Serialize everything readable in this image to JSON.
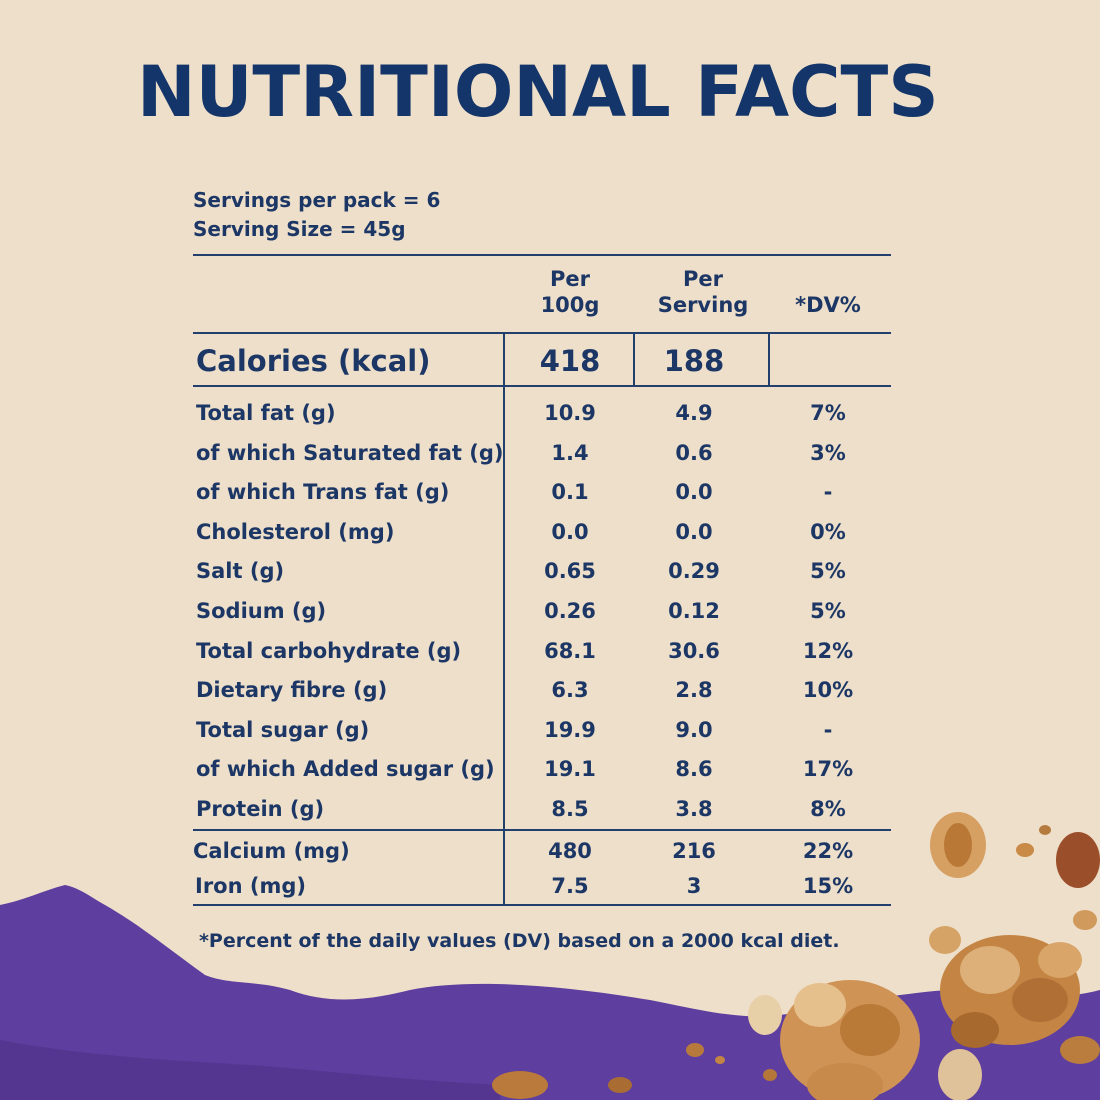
{
  "title": "NUTRITIONAL FACTS",
  "servings_per_pack": "Servings per pack = 6",
  "serving_size": "Serving Size = 45g",
  "headers": {
    "per_100g": [
      "Per",
      "100g"
    ],
    "per_serving": [
      "Per",
      "Serving"
    ],
    "dv": "*DV%"
  },
  "calories": {
    "label": "Calories (kcal)",
    "per_100g": "418",
    "per_serving": "188",
    "dv": ""
  },
  "rows": [
    {
      "label": "Total fat (g)",
      "per_100g": "10.9",
      "per_serving": "4.9",
      "dv": "7%"
    },
    {
      "label": "of which Saturated fat (g)",
      "per_100g": "1.4",
      "per_serving": "0.6",
      "dv": "3%"
    },
    {
      "label": "of which Trans fat (g)",
      "per_100g": "0.1",
      "per_serving": "0.0",
      "dv": "-"
    },
    {
      "label": "Cholesterol (mg)",
      "per_100g": "0.0",
      "per_serving": "0.0",
      "dv": "0%"
    },
    {
      "label": "Salt (g)",
      "per_100g": "0.65",
      "per_serving": "0.29",
      "dv": "5%"
    },
    {
      "label": "Sodium (g)",
      "per_100g": "0.26",
      "per_serving": "0.12",
      "dv": "5%"
    },
    {
      "label": "Total carbohydrate (g)",
      "per_100g": "68.1",
      "per_serving": "30.6",
      "dv": "12%"
    },
    {
      "label": "Dietary fibre (g)",
      "per_100g": "6.3",
      "per_serving": "2.8",
      "dv": "10%"
    },
    {
      "label": "Total sugar (g)",
      "per_100g": "19.9",
      "per_serving": "9.0",
      "dv": "-"
    },
    {
      "label": "of which Added sugar (g)",
      "per_100g": "19.1",
      "per_serving": "8.6",
      "dv": "17%"
    },
    {
      "label": "Protein (g)",
      "per_100g": "8.5",
      "per_serving": "3.8",
      "dv": "8%"
    }
  ],
  "minerals": [
    {
      "label": "Calcium (mg)",
      "per_100g": "480",
      "per_serving": "216",
      "dv": "22%"
    },
    {
      "label": "Iron (mg)",
      "per_100g": "7.5",
      "per_serving": "3",
      "dv": "15%"
    }
  ],
  "footnote": "*Percent of the daily values (DV) based on a 2000 kcal diet.",
  "colors": {
    "background": "#eedfca",
    "ink": "#1c3765",
    "title": "#143569",
    "purple": "#5e3e9e",
    "granola": "#c98a47"
  }
}
